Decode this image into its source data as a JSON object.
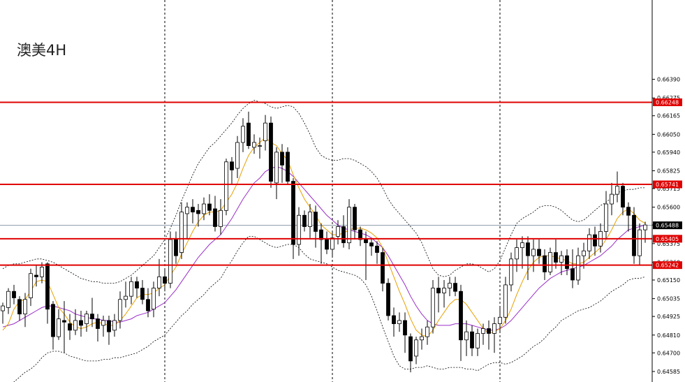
{
  "chart_data": {
    "type": "candlestick",
    "title": "澳美4H",
    "y_axis": {
      "range": [
        0.6452,
        0.6688
      ],
      "ticks": [
        "0.66390",
        "0.66275",
        "0.66165",
        "0.66050",
        "0.65940",
        "0.65825",
        "0.65715",
        "0.65600",
        "0.65490",
        "0.65375",
        "0.65260",
        "0.65150",
        "0.65035",
        "0.64925",
        "0.64810",
        "0.64700",
        "0.64585"
      ]
    },
    "levels": [
      {
        "label": "0.66248",
        "value": 0.66248,
        "color": "#e00000"
      },
      {
        "label": "0.65741",
        "value": 0.65741,
        "color": "#e00000"
      },
      {
        "label": "0.65405",
        "value": 0.65405,
        "color": "#e00000"
      },
      {
        "label": "0.65242",
        "value": 0.65242,
        "color": "#e00000"
      }
    ],
    "current_price": {
      "label": "0.65488",
      "value": 0.65488,
      "color": "#000000"
    },
    "series_colors": {
      "up": "#ffffff",
      "down": "#000000",
      "ma_fast": "#e8a000",
      "ma_slow": "#9a2ec8",
      "bands": "#000000"
    },
    "candles": [
      [
        0.6496,
        0.6501,
        0.6488,
        0.6499
      ],
      [
        0.6498,
        0.651,
        0.6494,
        0.6508
      ],
      [
        0.6508,
        0.6512,
        0.65,
        0.6504
      ],
      [
        0.6503,
        0.6505,
        0.649,
        0.6494
      ],
      [
        0.6494,
        0.6507,
        0.6486,
        0.6503
      ],
      [
        0.6504,
        0.6522,
        0.6499,
        0.6519
      ],
      [
        0.6518,
        0.6524,
        0.6511,
        0.6517
      ],
      [
        0.6517,
        0.6526,
        0.6513,
        0.6523
      ],
      [
        0.6525,
        0.6526,
        0.6488,
        0.6497
      ],
      [
        0.65,
        0.6502,
        0.6472,
        0.648
      ],
      [
        0.648,
        0.6497,
        0.6478,
        0.6491
      ],
      [
        0.649,
        0.6502,
        0.647,
        0.6489
      ],
      [
        0.6488,
        0.6494,
        0.6478,
        0.6484
      ],
      [
        0.6484,
        0.6497,
        0.6481,
        0.649
      ],
      [
        0.649,
        0.6496,
        0.648,
        0.6487
      ],
      [
        0.6488,
        0.6496,
        0.6483,
        0.6494
      ],
      [
        0.6494,
        0.6504,
        0.6486,
        0.6491
      ],
      [
        0.6491,
        0.6494,
        0.6477,
        0.6485
      ],
      [
        0.6487,
        0.6493,
        0.648,
        0.649
      ],
      [
        0.649,
        0.6493,
        0.6475,
        0.6483
      ],
      [
        0.6484,
        0.6494,
        0.648,
        0.649
      ],
      [
        0.649,
        0.6508,
        0.6485,
        0.6503
      ],
      [
        0.6503,
        0.6514,
        0.6498,
        0.6505
      ],
      [
        0.6505,
        0.6517,
        0.65,
        0.6514
      ],
      [
        0.6514,
        0.6517,
        0.6504,
        0.651
      ],
      [
        0.651,
        0.6515,
        0.65,
        0.6503
      ],
      [
        0.6503,
        0.651,
        0.6492,
        0.6496
      ],
      [
        0.6497,
        0.6514,
        0.6492,
        0.651
      ],
      [
        0.651,
        0.6528,
        0.6505,
        0.6517
      ],
      [
        0.6517,
        0.6522,
        0.6508,
        0.6513
      ],
      [
        0.6513,
        0.6545,
        0.651,
        0.654
      ],
      [
        0.654,
        0.6545,
        0.6525,
        0.653
      ],
      [
        0.6532,
        0.6563,
        0.6528,
        0.6557
      ],
      [
        0.6556,
        0.6563,
        0.654,
        0.656
      ],
      [
        0.656,
        0.6565,
        0.655,
        0.6557
      ],
      [
        0.6558,
        0.6562,
        0.6548,
        0.6556
      ],
      [
        0.6556,
        0.6566,
        0.6552,
        0.6562
      ],
      [
        0.6562,
        0.6568,
        0.6555,
        0.6558
      ],
      [
        0.6559,
        0.6567,
        0.6545,
        0.6548
      ],
      [
        0.6548,
        0.6565,
        0.6543,
        0.6558
      ],
      [
        0.6558,
        0.659,
        0.6555,
        0.6588
      ],
      [
        0.6588,
        0.6591,
        0.6574,
        0.6583
      ],
      [
        0.6584,
        0.6604,
        0.6578,
        0.66
      ],
      [
        0.66,
        0.6615,
        0.6594,
        0.661
      ],
      [
        0.6612,
        0.6619,
        0.6596,
        0.6598
      ],
      [
        0.6597,
        0.6605,
        0.6593,
        0.66
      ],
      [
        0.6598,
        0.6603,
        0.659,
        0.6598
      ],
      [
        0.6601,
        0.6617,
        0.6595,
        0.6612
      ],
      [
        0.6612,
        0.6616,
        0.6572,
        0.6576
      ],
      [
        0.6575,
        0.6597,
        0.6565,
        0.6594
      ],
      [
        0.6594,
        0.6599,
        0.6575,
        0.6586
      ],
      [
        0.6594,
        0.6597,
        0.6574,
        0.6576
      ],
      [
        0.6576,
        0.6578,
        0.6528,
        0.6537
      ],
      [
        0.6537,
        0.656,
        0.653,
        0.6555
      ],
      [
        0.6555,
        0.6558,
        0.6545,
        0.6548
      ],
      [
        0.6548,
        0.6562,
        0.6541,
        0.6557
      ],
      [
        0.6557,
        0.6561,
        0.6535,
        0.6545
      ],
      [
        0.6546,
        0.655,
        0.6525,
        0.654
      ],
      [
        0.654,
        0.6545,
        0.6531,
        0.6534
      ],
      [
        0.6534,
        0.6545,
        0.653,
        0.6541
      ],
      [
        0.6542,
        0.6552,
        0.6537,
        0.6548
      ],
      [
        0.6548,
        0.6555,
        0.6535,
        0.6538
      ],
      [
        0.6538,
        0.6565,
        0.6534,
        0.656
      ],
      [
        0.656,
        0.6562,
        0.654,
        0.6546
      ],
      [
        0.6546,
        0.6548,
        0.6536,
        0.654
      ],
      [
        0.654,
        0.6545,
        0.6515,
        0.6538
      ],
      [
        0.6538,
        0.6541,
        0.653,
        0.6536
      ],
      [
        0.6536,
        0.6539,
        0.6525,
        0.6532
      ],
      [
        0.6532,
        0.6535,
        0.6508,
        0.6513
      ],
      [
        0.6513,
        0.6516,
        0.649,
        0.6493
      ],
      [
        0.6493,
        0.6498,
        0.648,
        0.6488
      ],
      [
        0.6488,
        0.6495,
        0.6483,
        0.649
      ],
      [
        0.649,
        0.6495,
        0.647,
        0.6481
      ],
      [
        0.648,
        0.6482,
        0.6458,
        0.6465
      ],
      [
        0.6468,
        0.648,
        0.6463,
        0.6478
      ],
      [
        0.6478,
        0.6485,
        0.6472,
        0.648
      ],
      [
        0.648,
        0.649,
        0.6475,
        0.6486
      ],
      [
        0.6486,
        0.6515,
        0.6482,
        0.651
      ],
      [
        0.651,
        0.6517,
        0.6495,
        0.6507
      ],
      [
        0.6507,
        0.6515,
        0.6498,
        0.651
      ],
      [
        0.651,
        0.6517,
        0.6505,
        0.6513
      ],
      [
        0.6513,
        0.6517,
        0.6505,
        0.6508
      ],
      [
        0.6508,
        0.6512,
        0.6465,
        0.6478
      ],
      [
        0.6478,
        0.649,
        0.6468,
        0.6483
      ],
      [
        0.6483,
        0.6487,
        0.6468,
        0.6473
      ],
      [
        0.6473,
        0.6485,
        0.6468,
        0.6482
      ],
      [
        0.6482,
        0.6488,
        0.6475,
        0.6485
      ],
      [
        0.6485,
        0.649,
        0.6472,
        0.6482
      ],
      [
        0.6482,
        0.6492,
        0.647,
        0.6488
      ],
      [
        0.6488,
        0.6498,
        0.6483,
        0.6492
      ],
      [
        0.6492,
        0.6517,
        0.6488,
        0.6512
      ],
      [
        0.6512,
        0.6532,
        0.6508,
        0.6528
      ],
      [
        0.6528,
        0.654,
        0.652,
        0.6535
      ],
      [
        0.6535,
        0.6542,
        0.6522,
        0.6538
      ],
      [
        0.6538,
        0.6542,
        0.6515,
        0.653
      ],
      [
        0.653,
        0.654,
        0.652,
        0.6534
      ],
      [
        0.6534,
        0.654,
        0.6525,
        0.653
      ],
      [
        0.653,
        0.6534,
        0.6515,
        0.652
      ],
      [
        0.652,
        0.6535,
        0.6518,
        0.6532
      ],
      [
        0.6532,
        0.654,
        0.6522,
        0.6526
      ],
      [
        0.6526,
        0.6533,
        0.6518,
        0.653
      ],
      [
        0.653,
        0.6534,
        0.6518,
        0.6522
      ],
      [
        0.6522,
        0.6534,
        0.651,
        0.6515
      ],
      [
        0.6515,
        0.6535,
        0.6512,
        0.653
      ],
      [
        0.653,
        0.6538,
        0.6522,
        0.6533
      ],
      [
        0.6533,
        0.6547,
        0.6528,
        0.6543
      ],
      [
        0.6543,
        0.6548,
        0.653,
        0.6536
      ],
      [
        0.6536,
        0.655,
        0.6532,
        0.6545
      ],
      [
        0.6545,
        0.657,
        0.654,
        0.6562
      ],
      [
        0.6562,
        0.6575,
        0.6555,
        0.6568
      ],
      [
        0.6568,
        0.6582,
        0.6563,
        0.6573
      ],
      [
        0.6573,
        0.6575,
        0.6555,
        0.656
      ],
      [
        0.656,
        0.6563,
        0.6545,
        0.6555
      ],
      [
        0.6555,
        0.656,
        0.6525,
        0.653
      ],
      [
        0.653,
        0.655,
        0.6524,
        0.6546
      ],
      [
        0.6546,
        0.6551,
        0.6538,
        0.6549
      ]
    ],
    "ma_fast": [
      0.6484,
      0.6488,
      0.6497,
      0.6502,
      0.6503,
      0.6508,
      0.6514,
      0.6515,
      0.6514,
      0.6506,
      0.6498,
      0.6494,
      0.6489,
      0.6486,
      0.6485,
      0.6486,
      0.6488,
      0.6489,
      0.6488,
      0.6487,
      0.6487,
      0.649,
      0.6494,
      0.6499,
      0.6504,
      0.6506,
      0.6506,
      0.6507,
      0.651,
      0.6512,
      0.6518,
      0.6523,
      0.6531,
      0.6538,
      0.6545,
      0.6551,
      0.6555,
      0.6557,
      0.6557,
      0.6558,
      0.6563,
      0.6568,
      0.6575,
      0.6584,
      0.6592,
      0.6597,
      0.66,
      0.6603,
      0.66,
      0.6598,
      0.6593,
      0.6589,
      0.658,
      0.6572,
      0.6565,
      0.656,
      0.6555,
      0.6549,
      0.6546,
      0.6543,
      0.6543,
      0.6544,
      0.6546,
      0.6547,
      0.6547,
      0.6546,
      0.6544,
      0.6541,
      0.6535,
      0.6526,
      0.6517,
      0.6508,
      0.65,
      0.6491,
      0.6484,
      0.6481,
      0.648,
      0.6484,
      0.649,
      0.6495,
      0.65,
      0.6503,
      0.6503,
      0.65,
      0.6495,
      0.649,
      0.6485,
      0.6482,
      0.6483,
      0.6485,
      0.649,
      0.6497,
      0.6506,
      0.6514,
      0.6521,
      0.6526,
      0.6529,
      0.653,
      0.653,
      0.6529,
      0.6528,
      0.6527,
      0.6525,
      0.6525,
      0.6526,
      0.6529,
      0.6532,
      0.6535,
      0.654,
      0.6546,
      0.6553,
      0.6557,
      0.6559,
      0.6556,
      0.6552,
      0.655
    ],
    "ma_slow": [
      0.6486,
      0.6487,
      0.6488,
      0.649,
      0.6492,
      0.6494,
      0.6496,
      0.6498,
      0.6499,
      0.6499,
      0.6498,
      0.6497,
      0.6496,
      0.6494,
      0.6493,
      0.6492,
      0.6491,
      0.6491,
      0.649,
      0.649,
      0.6489,
      0.6489,
      0.649,
      0.6491,
      0.6493,
      0.6494,
      0.6495,
      0.6497,
      0.6499,
      0.6501,
      0.6505,
      0.6509,
      0.6514,
      0.6519,
      0.6524,
      0.6529,
      0.6533,
      0.6537,
      0.654,
      0.6543,
      0.6548,
      0.6553,
      0.6559,
      0.6565,
      0.657,
      0.6575,
      0.6578,
      0.6582,
      0.6584,
      0.6585,
      0.6584,
      0.6582,
      0.6579,
      0.6575,
      0.6571,
      0.6567,
      0.6563,
      0.6559,
      0.6555,
      0.6552,
      0.6549,
      0.6547,
      0.6546,
      0.6545,
      0.6544,
      0.6543,
      0.6541,
      0.6538,
      0.6535,
      0.653,
      0.6524,
      0.6518,
      0.6512,
      0.6505,
      0.6499,
      0.6494,
      0.649,
      0.6488,
      0.6487,
      0.6487,
      0.6487,
      0.6488,
      0.6488,
      0.6488,
      0.6487,
      0.6486,
      0.6485,
      0.6484,
      0.6484,
      0.6485,
      0.6487,
      0.649,
      0.6494,
      0.6498,
      0.6502,
      0.6506,
      0.651,
      0.6513,
      0.6516,
      0.6518,
      0.652,
      0.6521,
      0.6522,
      0.6523,
      0.6524,
      0.6526,
      0.6528,
      0.653,
      0.6533,
      0.6536,
      0.654,
      0.6543,
      0.6546,
      0.6547,
      0.6548,
      0.6549
    ],
    "band_upper": [
      0.6522,
      0.6524,
      0.6525,
      0.6525,
      0.6526,
      0.6527,
      0.6528,
      0.6528,
      0.6527,
      0.6526,
      0.6524,
      0.6522,
      0.652,
      0.6518,
      0.6516,
      0.6515,
      0.6514,
      0.6514,
      0.6513,
      0.6513,
      0.6513,
      0.6514,
      0.6516,
      0.6518,
      0.6521,
      0.6524,
      0.6527,
      0.653,
      0.6535,
      0.654,
      0.6547,
      0.6555,
      0.6564,
      0.6572,
      0.658,
      0.6587,
      0.6592,
      0.6597,
      0.66,
      0.6604,
      0.6608,
      0.6612,
      0.6617,
      0.6621,
      0.6624,
      0.6626,
      0.6625,
      0.6624,
      0.6622,
      0.6621,
      0.6622,
      0.6623,
      0.6622,
      0.6618,
      0.6612,
      0.6605,
      0.6597,
      0.6592,
      0.659,
      0.6589,
      0.6589,
      0.659,
      0.659,
      0.6589,
      0.6587,
      0.6585,
      0.6582,
      0.6578,
      0.6572,
      0.6565,
      0.656,
      0.6556,
      0.6552,
      0.6548,
      0.6544,
      0.6538,
      0.653,
      0.6522,
      0.6518,
      0.6517,
      0.6518,
      0.6521,
      0.6523,
      0.6525,
      0.6525,
      0.6524,
      0.6522,
      0.652,
      0.6522,
      0.6527,
      0.6535,
      0.6543,
      0.655,
      0.6553,
      0.6555,
      0.6557,
      0.656,
      0.6561,
      0.6561,
      0.656,
      0.6558,
      0.6555,
      0.6552,
      0.6551,
      0.6552,
      0.6555,
      0.6558,
      0.6561,
      0.6563,
      0.6566,
      0.6569,
      0.657,
      0.6571,
      0.6571,
      0.6572,
      0.6572
    ],
    "band_lower": [
      0.645,
      0.6451,
      0.6452,
      0.6455,
      0.6458,
      0.646,
      0.6463,
      0.6467,
      0.647,
      0.6471,
      0.6471,
      0.647,
      0.6468,
      0.6467,
      0.6466,
      0.6465,
      0.6465,
      0.6465,
      0.6466,
      0.6466,
      0.6467,
      0.6467,
      0.6468,
      0.6469,
      0.647,
      0.6472,
      0.6474,
      0.6477,
      0.6479,
      0.6481,
      0.6485,
      0.6489,
      0.6493,
      0.6496,
      0.65,
      0.6503,
      0.6506,
      0.651,
      0.6513,
      0.6516,
      0.6522,
      0.6527,
      0.6533,
      0.6538,
      0.6542,
      0.6542,
      0.654,
      0.6538,
      0.6536,
      0.6535,
      0.6536,
      0.6537,
      0.6537,
      0.6535,
      0.6531,
      0.6528,
      0.6527,
      0.6526,
      0.6525,
      0.6523,
      0.6521,
      0.652,
      0.6519,
      0.6518,
      0.6516,
      0.6512,
      0.6505,
      0.6496,
      0.6486,
      0.6477,
      0.6468,
      0.6462,
      0.646,
      0.646,
      0.6461,
      0.6461,
      0.6462,
      0.6461,
      0.646,
      0.646,
      0.6461,
      0.6461,
      0.6461,
      0.646,
      0.646,
      0.6459,
      0.6461,
      0.6463,
      0.6464,
      0.6464,
      0.6463,
      0.6464,
      0.6466,
      0.6468,
      0.6471,
      0.6474,
      0.6476,
      0.6479,
      0.6483,
      0.6486,
      0.649,
      0.6492,
      0.6494,
      0.6496,
      0.6497,
      0.6498,
      0.65,
      0.6502,
      0.6505,
      0.6508,
      0.651,
      0.6512,
      0.6515,
      0.6516,
      0.6516,
      0.6517
    ]
  }
}
